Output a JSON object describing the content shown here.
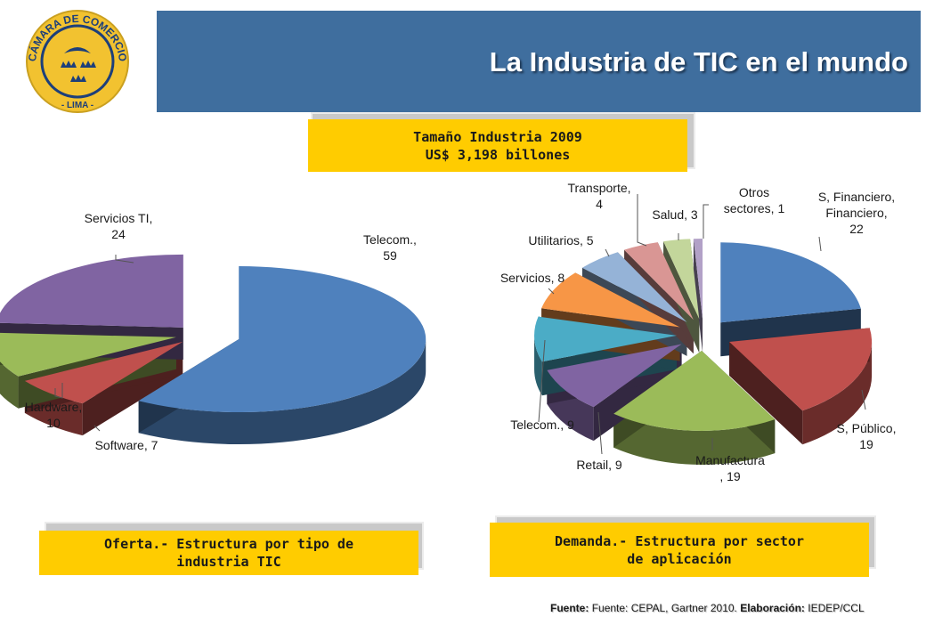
{
  "slide": {
    "title": "La Industria de TIC en el mundo",
    "logo_text": "CÁMARA DE COMERCIO - LIMA -",
    "colors": {
      "header": "#3f6e9e",
      "box": "#ffcc00"
    }
  },
  "size_box": {
    "line1": "Tamaño Industria 2009",
    "line2": "US$ 3,198 billones"
  },
  "oferta_box": {
    "line1": "Oferta.- Estructura por tipo de",
    "line2": "industria TIC"
  },
  "demanda_box": {
    "line1": "Demanda.- Estructura por sector",
    "line2": "de aplicación"
  },
  "source": {
    "label1": "Fuente:",
    "text1": "Fuente: CEPAL, Gartner 2010.",
    "label2": "Elaboración:",
    "text2": "IEDEP/CCL"
  },
  "chart_data": [
    {
      "type": "pie",
      "title": "Oferta.- Estructura por tipo de industria TIC",
      "labels": [
        "Telecom.",
        "Software",
        "Hardware",
        "Servicios TI"
      ],
      "values": [
        59,
        7,
        10,
        24
      ],
      "colors": [
        "#4f81bd",
        "#c0504d",
        "#9bbb59",
        "#8064a2"
      ]
    },
    {
      "type": "pie",
      "title": "Demanda.- Estructura por sector de aplicación",
      "labels": [
        "S, Financiero",
        "S, Público",
        "Manufactura",
        "Retail",
        "Telecom.",
        "Servicios",
        "Utilitarios",
        "Transporte",
        "Salud",
        "Otros sectores"
      ],
      "values": [
        22,
        19,
        19,
        9,
        9,
        8,
        5,
        4,
        3,
        1
      ],
      "colors": [
        "#4f81bd",
        "#c0504d",
        "#9bbb59",
        "#8064a2",
        "#4bacc6",
        "#f79646",
        "#95b3d7",
        "#d99694",
        "#c3d69b",
        "#b2a1c7"
      ]
    }
  ]
}
